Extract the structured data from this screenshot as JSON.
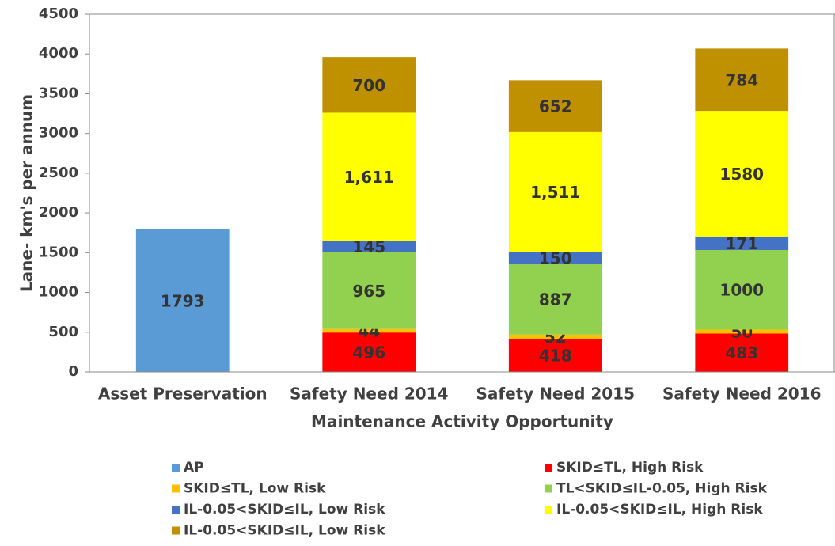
{
  "chart_data": {
    "type": "stacked_bar",
    "x_label": "Maintenance Activity Opportunity",
    "y_label": "Lane- km's per annum",
    "categories": [
      "Asset Preservation",
      "Safety Need 2014",
      "Safety Need 2015",
      "Safety Need 2016"
    ],
    "series": [
      {
        "name": "AP",
        "color": "#5b9bd5",
        "values": [
          1793,
          null,
          null,
          null
        ]
      },
      {
        "name": "SKID≤TL, High Risk",
        "color": "#ff0000",
        "values": [
          null,
          496,
          418,
          483
        ]
      },
      {
        "name": "SKID≤TL, Low Risk",
        "color": "#ffc000",
        "values": [
          null,
          44,
          52,
          50
        ]
      },
      {
        "name": "TL<SKID≤IL-0.05, High Risk",
        "color": "#92d050",
        "values": [
          null,
          965,
          887,
          1000
        ]
      },
      {
        "name": "IL-0.05<SKID≤IL, Low Risk",
        "color": "#4472c4",
        "values": [
          null,
          145,
          150,
          171
        ]
      },
      {
        "name": "IL-0.05<SKID≤IL, High Risk",
        "color": "#ffff00",
        "values": [
          null,
          1611,
          1511,
          1580
        ],
        "value_labels": [
          null,
          "1,611",
          "1,511",
          "1580"
        ]
      },
      {
        "name": "IL-0.05<SKID≤IL, Low Risk",
        "color": "#bf9000",
        "values": [
          null,
          700,
          652,
          784
        ]
      }
    ],
    "ylim": [
      0,
      4500
    ],
    "yticks": [
      0,
      500,
      1000,
      1500,
      2000,
      2500,
      3000,
      3500,
      4000,
      4500
    ],
    "grid": false
  }
}
